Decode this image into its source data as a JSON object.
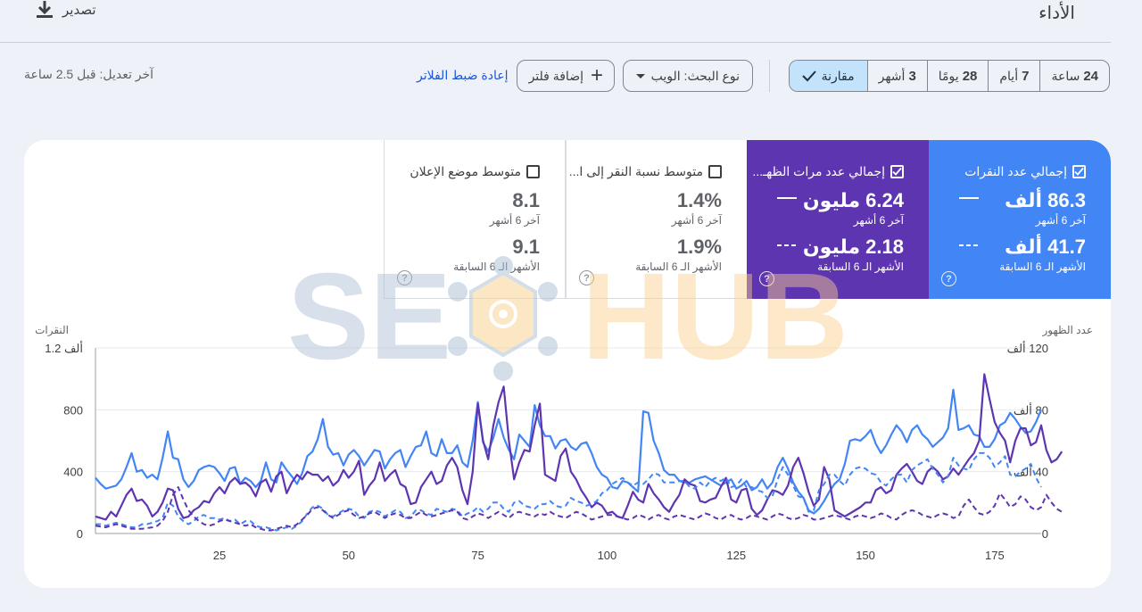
{
  "header": {
    "title": "الأداء",
    "export_label": "تصدير"
  },
  "filters": {
    "ranges": [
      {
        "num": "24",
        "unit": "ساعة"
      },
      {
        "num": "7",
        "unit": "أيام"
      },
      {
        "num": "28",
        "unit": "يومًا"
      },
      {
        "num": "3",
        "unit": "أشهر"
      }
    ],
    "compare_label": "مقارنة",
    "search_type": "نوع البحث: الويب",
    "add_filter": "إضافة فلتر",
    "reset": "إعادة ضبط الفلاتر",
    "last_update": "آخر تعديل: قبل 2.5 ساعة"
  },
  "metrics": {
    "clicks": {
      "label": "إجمالي عدد النقرات",
      "value1": "86.3 ألف",
      "sub1": "آخر 6 أشهر",
      "value2": "41.7 ألف",
      "sub2": "الأشهر الـ 6 السابقة",
      "color": "#4285f4",
      "checked": true
    },
    "impressions": {
      "label": "إجمالي عدد مرات الظهـ...",
      "value1": "6.24 مليون",
      "sub1": "آخر 6 أشهر",
      "value2": "2.18 مليون",
      "sub2": "الأشهر الـ 6 السابقة",
      "color": "#5e35b1",
      "checked": true
    },
    "ctr": {
      "label": "متوسط نسبة النقر إلى ا...",
      "value1": "1.4%",
      "sub1": "آخر 6 أشهر",
      "value2": "1.9%",
      "sub2": "الأشهر الـ 6 السابقة",
      "checked": false
    },
    "position": {
      "label": "متوسط موضع الإعلان",
      "value1": "8.1",
      "sub1": "آخر 6 أشهر",
      "value2": "9.1",
      "sub2": "الأشهر الـ 6 السابقة",
      "checked": false
    }
  },
  "watermark": {
    "left": "SE",
    "right": "HUB"
  },
  "chart_data": {
    "type": "line",
    "left_axis": {
      "title": "النقرات",
      "ticks": [
        "0",
        "400",
        "800",
        "1.2 ألف"
      ],
      "ylim": [
        0,
        1200
      ]
    },
    "right_axis": {
      "title": "عدد الظهور",
      "ticks": [
        "0",
        "40 ألف",
        "80 ألف",
        "120 ألف"
      ],
      "ylim": [
        0,
        120000
      ]
    },
    "x_ticks": [
      25,
      50,
      75,
      100,
      125,
      150,
      175
    ],
    "xlim": [
      1,
      184
    ],
    "colors": {
      "clicks": "#4285f4",
      "impressions": "#5e35b1"
    },
    "series": [
      {
        "name": "إجمالي عدد النقرات",
        "axis": "left",
        "dashed": false,
        "color": "#4285f4",
        "values": [
          360,
          320,
          290,
          300,
          310,
          350,
          430,
          520,
          400,
          410,
          360,
          380,
          350,
          490,
          660,
          490,
          480,
          350,
          300,
          340,
          410,
          430,
          440,
          430,
          390,
          340,
          420,
          430,
          320,
          360,
          340,
          300,
          340,
          460,
          350,
          330,
          460,
          410,
          370,
          320,
          390,
          500,
          530,
          610,
          740,
          560,
          510,
          520,
          440,
          510,
          540,
          500,
          440,
          490,
          540,
          530,
          420,
          480,
          520,
          540,
          430,
          500,
          560,
          570,
          660,
          520,
          500,
          610,
          520,
          520,
          570,
          460,
          430,
          600,
          850,
          590,
          530,
          620,
          740,
          620,
          540,
          480,
          640,
          600,
          560,
          830,
          700,
          630,
          630,
          550,
          600,
          610,
          560,
          540,
          580,
          590,
          520,
          430,
          380,
          360,
          300,
          290,
          340,
          330,
          300,
          270,
          790,
          780,
          600,
          520,
          410,
          380,
          380,
          340,
          330,
          330,
          350,
          360,
          370,
          350,
          330,
          310,
          330,
          350,
          290,
          310,
          340,
          280,
          300,
          350,
          290,
          330,
          430,
          490,
          420,
          330,
          270,
          230,
          150,
          130,
          160,
          210,
          270,
          320,
          350,
          450,
          600,
          610,
          600,
          630,
          670,
          580,
          520,
          570,
          640,
          700,
          660,
          590,
          670,
          700,
          640,
          610,
          560,
          590,
          620,
          680,
          930,
          670,
          680,
          700,
          640,
          630,
          560,
          560,
          610,
          700,
          720,
          780,
          740,
          690,
          650,
          660,
          720,
          800
        ]
      },
      {
        "name": "إجمالي عدد مرات الظهور",
        "axis": "right",
        "dashed": false,
        "color": "#5e35b1",
        "values": [
          11000,
          10000,
          9000,
          14000,
          11000,
          18000,
          25000,
          29000,
          21000,
          22000,
          18000,
          11000,
          14000,
          20000,
          29000,
          28000,
          16000,
          10000,
          11000,
          15000,
          17000,
          21000,
          20000,
          26000,
          30000,
          26000,
          33000,
          36000,
          32000,
          33000,
          30000,
          24000,
          33000,
          35000,
          27000,
          37000,
          40000,
          26000,
          33000,
          38000,
          35000,
          40000,
          38000,
          38000,
          34000,
          37000,
          31000,
          34000,
          41000,
          36000,
          40000,
          47000,
          25000,
          31000,
          35000,
          46000,
          34000,
          38000,
          41000,
          32000,
          30000,
          19000,
          20000,
          30000,
          35000,
          40000,
          32000,
          34000,
          44000,
          49000,
          43000,
          28000,
          19000,
          40000,
          84000,
          60000,
          48000,
          70000,
          85000,
          95000,
          60000,
          35000,
          46000,
          54000,
          53000,
          70000,
          84000,
          38000,
          36000,
          34000,
          50000,
          55000,
          40000,
          35000,
          28000,
          23000,
          17000,
          20000,
          18000,
          13000,
          14000,
          11000,
          10000,
          18000,
          27000,
          22000,
          20000,
          32000,
          26000,
          22000,
          17000,
          14000,
          20000,
          25000,
          35000,
          32000,
          31000,
          21000,
          20000,
          22000,
          23000,
          30000,
          36000,
          22000,
          20000,
          28000,
          29000,
          16000,
          12000,
          15000,
          22000,
          28000,
          27000,
          25000,
          31000,
          43000,
          49000,
          39000,
          27000,
          18000,
          22000,
          43000,
          35000,
          15000,
          13000,
          11000,
          13000,
          15000,
          17000,
          20000,
          20000,
          28000,
          30000,
          26000,
          28000,
          38000,
          42000,
          45000,
          40000,
          34000,
          32000,
          40000,
          43000,
          40000,
          35000,
          37000,
          42000,
          38000,
          43000,
          48000,
          52000,
          60000,
          103000,
          87000,
          72000,
          65000,
          60000,
          46000,
          60000,
          68000,
          68000,
          57000,
          59000,
          70000,
          54000,
          46000,
          48000,
          53000
        ]
      },
      {
        "name": "إجمالي عدد النقرات — الأشهر الـ 6 السابقة",
        "axis": "left",
        "dashed": true,
        "color": "#4285f4",
        "values": [
          60,
          60,
          50,
          60,
          70,
          60,
          50,
          40,
          40,
          60,
          60,
          70,
          80,
          100,
          200,
          180,
          110,
          80,
          60,
          80,
          110,
          120,
          100,
          100,
          90,
          100,
          80,
          90,
          60,
          80,
          80,
          50,
          40,
          40,
          30,
          20,
          30,
          40,
          30,
          50,
          80,
          130,
          170,
          180,
          160,
          120,
          110,
          130,
          150,
          160,
          150,
          110,
          100,
          140,
          150,
          140,
          110,
          130,
          150,
          140,
          100,
          110,
          150,
          150,
          130,
          120,
          160,
          150,
          140,
          160,
          150,
          110,
          130,
          140,
          170,
          140,
          160,
          200,
          200,
          160,
          140,
          200,
          210,
          180,
          170,
          160,
          190,
          190,
          210,
          180,
          170,
          180,
          230,
          210,
          200,
          180,
          190,
          210,
          260,
          280,
          320,
          340,
          360,
          330,
          310,
          330,
          320,
          350,
          390,
          380,
          330,
          330,
          330,
          340,
          340,
          300,
          290,
          330,
          300,
          340,
          360,
          340,
          360,
          300,
          310,
          350,
          300,
          300,
          280,
          270,
          230,
          240,
          350,
          430,
          380,
          310,
          240,
          230,
          140,
          150,
          280,
          320,
          380,
          380,
          340,
          310,
          380,
          420,
          430,
          420,
          390,
          380,
          330,
          310,
          350,
          380,
          380,
          330,
          410,
          440,
          460,
          480,
          420,
          380,
          330,
          370,
          490,
          440,
          420,
          410,
          480,
          520,
          520,
          490,
          430,
          460,
          500,
          380,
          370,
          400,
          420,
          450,
          360,
          300
        ]
      },
      {
        "name": "إجمالي عدد مرات الظهور — الأشهر الـ 6 السابقة",
        "axis": "right",
        "dashed": true,
        "color": "#5e35b1",
        "values": [
          5000,
          4500,
          4000,
          5000,
          6000,
          5000,
          4000,
          3000,
          3000,
          3000,
          3500,
          4000,
          5000,
          8000,
          14000,
          25000,
          30000,
          22000,
          15000,
          11000,
          8000,
          6000,
          5000,
          6000,
          8000,
          9000,
          8000,
          7000,
          6000,
          5000,
          6000,
          4000,
          3000,
          2000,
          2000,
          3000,
          4000,
          5000,
          4000,
          6000,
          9000,
          12000,
          16000,
          17000,
          15000,
          12000,
          10000,
          12000,
          14000,
          15000,
          12000,
          10000,
          11000,
          13000,
          14000,
          12000,
          10000,
          12000,
          13000,
          12000,
          10000,
          10000,
          12000,
          14000,
          12000,
          11000,
          12000,
          13000,
          14000,
          15000,
          14000,
          10000,
          9000,
          11000,
          13000,
          12000,
          10000,
          12000,
          14000,
          12000,
          10000,
          13000,
          14000,
          13000,
          12000,
          11000,
          13000,
          12000,
          14000,
          12000,
          11000,
          10000,
          12000,
          14000,
          13000,
          11000,
          9000,
          10000,
          11000,
          12000,
          12000,
          11000,
          10000,
          9000,
          10000,
          12000,
          11000,
          9000,
          11000,
          12000,
          10000,
          9000,
          11000,
          12000,
          11000,
          10000,
          9000,
          11000,
          13000,
          12000,
          10000,
          9000,
          11000,
          12000,
          10000,
          9000,
          10000,
          12000,
          11000,
          10000,
          9000,
          11000,
          13000,
          12000,
          10000,
          9000,
          10000,
          12000,
          11000,
          9000,
          9000,
          10000,
          11000,
          12000,
          11000,
          10000,
          9000,
          11000,
          12000,
          11000,
          10000,
          11000,
          13000,
          12000,
          10000,
          9000,
          12000,
          14000,
          15000,
          14000,
          12000,
          11000,
          10000,
          12000,
          13000,
          12000,
          10000,
          11000,
          18000,
          22000,
          17000,
          13000,
          12000,
          14000,
          18000,
          26000,
          22000,
          17000,
          19000,
          24000,
          22000,
          17000,
          15000,
          17000,
          25000,
          20000,
          16000,
          14000
        ]
      }
    ]
  }
}
